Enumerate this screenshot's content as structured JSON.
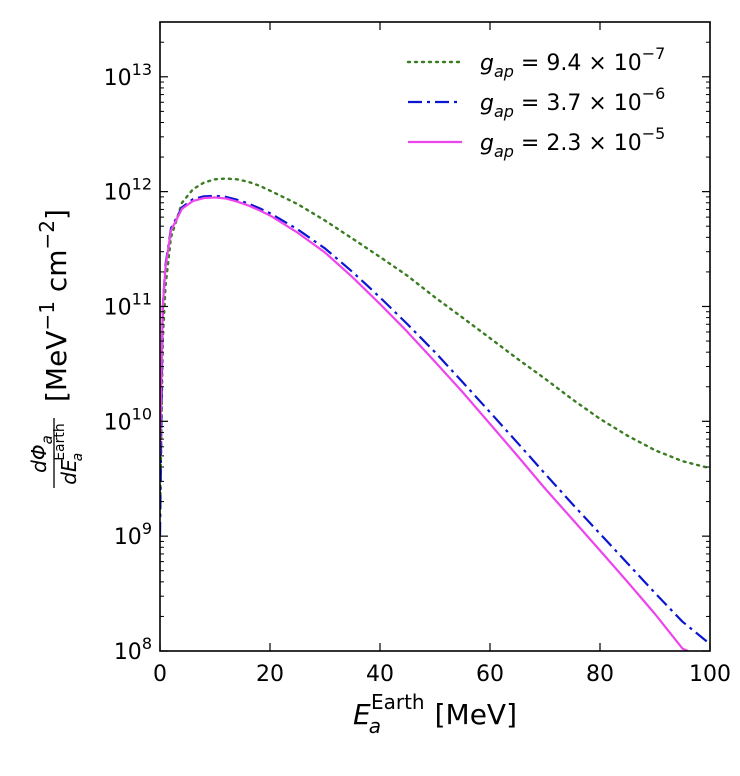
{
  "chart_data": {
    "type": "line",
    "x_scale": "linear",
    "y_scale": "log",
    "xlim": [
      0,
      100
    ],
    "ylim": [
      100000000.0,
      30000000000000.0
    ],
    "xlabel": "E_a^Earth [MeV]",
    "xlabel_parts": {
      "main": "E",
      "sub": "a",
      "sup": "Earth",
      "unit": "[MeV]"
    },
    "ylabel": "dΦ_a / dE_a^Earth [MeV^-1 cm^-2]",
    "ylabel_parts": {
      "numerator": "dΦ",
      "numerator_sub": "a",
      "denominator": "dE",
      "denominator_sub": "a",
      "denominator_sup": "Earth",
      "unit": "[MeV",
      "unit_exp1": "−1",
      "unit_mid": " cm",
      "unit_exp2": "−2",
      "unit_end": "]"
    },
    "x_ticks": [
      {
        "value": 0,
        "label": "0"
      },
      {
        "value": 20,
        "label": "20"
      },
      {
        "value": 40,
        "label": "40"
      },
      {
        "value": 60,
        "label": "60"
      },
      {
        "value": 80,
        "label": "80"
      },
      {
        "value": 100,
        "label": "100"
      }
    ],
    "y_ticks": [
      {
        "value": 100000000.0,
        "base": "10",
        "exp": "8"
      },
      {
        "value": 1000000000.0,
        "base": "10",
        "exp": "9"
      },
      {
        "value": 10000000000.0,
        "base": "10",
        "exp": "10"
      },
      {
        "value": 100000000000.0,
        "base": "10",
        "exp": "11"
      },
      {
        "value": 1000000000000.0,
        "base": "10",
        "exp": "12"
      },
      {
        "value": 10000000000000.0,
        "base": "10",
        "exp": "13"
      }
    ],
    "grid": false,
    "legend_position": "top-right",
    "series": [
      {
        "name": "g_ap = 9.4 × 10^-7",
        "legend": {
          "sym": "g",
          "sub": "ap",
          "text": " = 9.4 × 10",
          "exp": "−7"
        },
        "color": "#3a7d22",
        "style": "dotted",
        "points": [
          [
            0,
            1500000000.0
          ],
          [
            0.5,
            50000000000.0
          ],
          [
            1,
            150000000000.0
          ],
          [
            2,
            400000000000.0
          ],
          [
            4,
            800000000000.0
          ],
          [
            6,
            1050000000000.0
          ],
          [
            8,
            1200000000000.0
          ],
          [
            10,
            1280000000000.0
          ],
          [
            12,
            1300000000000.0
          ],
          [
            14,
            1280000000000.0
          ],
          [
            16,
            1220000000000.0
          ],
          [
            18,
            1130000000000.0
          ],
          [
            20,
            1020000000000.0
          ],
          [
            25,
            780000000000.0
          ],
          [
            30,
            560000000000.0
          ],
          [
            35,
            390000000000.0
          ],
          [
            40,
            270000000000.0
          ],
          [
            45,
            185000000000.0
          ],
          [
            50,
            120000000000.0
          ],
          [
            55,
            80000000000.0
          ],
          [
            60,
            53000000000.0
          ],
          [
            65,
            35000000000.0
          ],
          [
            70,
            23500000000.0
          ],
          [
            75,
            15500000000.0
          ],
          [
            80,
            10500000000.0
          ],
          [
            85,
            7500000000.0
          ],
          [
            90,
            5600000000.0
          ],
          [
            95,
            4500000000.0
          ],
          [
            100,
            3900000000.0
          ]
        ]
      },
      {
        "name": "g_ap = 3.7 × 10^-6",
        "legend": {
          "sym": "g",
          "sub": "ap",
          "text": " = 3.7 × 10",
          "exp": "−6"
        },
        "color": "#0a16cf",
        "style": "dashdot",
        "points": [
          [
            0,
            1000000000.0
          ],
          [
            0.5,
            100000000000.0
          ],
          [
            1,
            230000000000.0
          ],
          [
            2,
            480000000000.0
          ],
          [
            4,
            730000000000.0
          ],
          [
            6,
            860000000000.0
          ],
          [
            8,
            910000000000.0
          ],
          [
            10,
            920000000000.0
          ],
          [
            12,
            900000000000.0
          ],
          [
            14,
            850000000000.0
          ],
          [
            16,
            790000000000.0
          ],
          [
            18,
            720000000000.0
          ],
          [
            20,
            650000000000.0
          ],
          [
            25,
            470000000000.0
          ],
          [
            30,
            320000000000.0
          ],
          [
            35,
            200000000000.0
          ],
          [
            40,
            120000000000.0
          ],
          [
            45,
            70000000000.0
          ],
          [
            50,
            40000000000.0
          ],
          [
            55,
            22000000000.0
          ],
          [
            60,
            12000000000.0
          ],
          [
            65,
            6500000000.0
          ],
          [
            70,
            3500000000.0
          ],
          [
            75,
            1900000000.0
          ],
          [
            80,
            1050000000.0
          ],
          [
            85,
            580000000.0
          ],
          [
            90,
            320000000.0
          ],
          [
            95,
            180000000.0
          ],
          [
            100,
            115000000.0
          ]
        ]
      },
      {
        "name": "g_ap = 2.3 × 10^-5",
        "legend": {
          "sym": "g",
          "sub": "ap",
          "text": " = 2.3 × 10",
          "exp": "−5"
        },
        "color": "#ee44ee",
        "style": "solid",
        "points": [
          [
            0,
            5000000000.0
          ],
          [
            0.5,
            100000000000.0
          ],
          [
            1,
            220000000000.0
          ],
          [
            2,
            460000000000.0
          ],
          [
            4,
            710000000000.0
          ],
          [
            6,
            830000000000.0
          ],
          [
            8,
            880000000000.0
          ],
          [
            10,
            890000000000.0
          ],
          [
            12,
            870000000000.0
          ],
          [
            14,
            820000000000.0
          ],
          [
            16,
            760000000000.0
          ],
          [
            18,
            690000000000.0
          ],
          [
            20,
            620000000000.0
          ],
          [
            25,
            440000000000.0
          ],
          [
            30,
            295000000000.0
          ],
          [
            35,
            180000000000.0
          ],
          [
            40,
            105000000000.0
          ],
          [
            45,
            60000000000.0
          ],
          [
            50,
            33000000000.0
          ],
          [
            55,
            18000000000.0
          ],
          [
            60,
            9500000000.0
          ],
          [
            65,
            5000000000.0
          ],
          [
            70,
            2600000000.0
          ],
          [
            75,
            1400000000.0
          ],
          [
            80,
            750000000.0
          ],
          [
            85,
            400000000.0
          ],
          [
            90,
            210000000.0
          ],
          [
            95,
            105000000.0
          ],
          [
            96,
            100000000.0
          ]
        ]
      }
    ]
  }
}
